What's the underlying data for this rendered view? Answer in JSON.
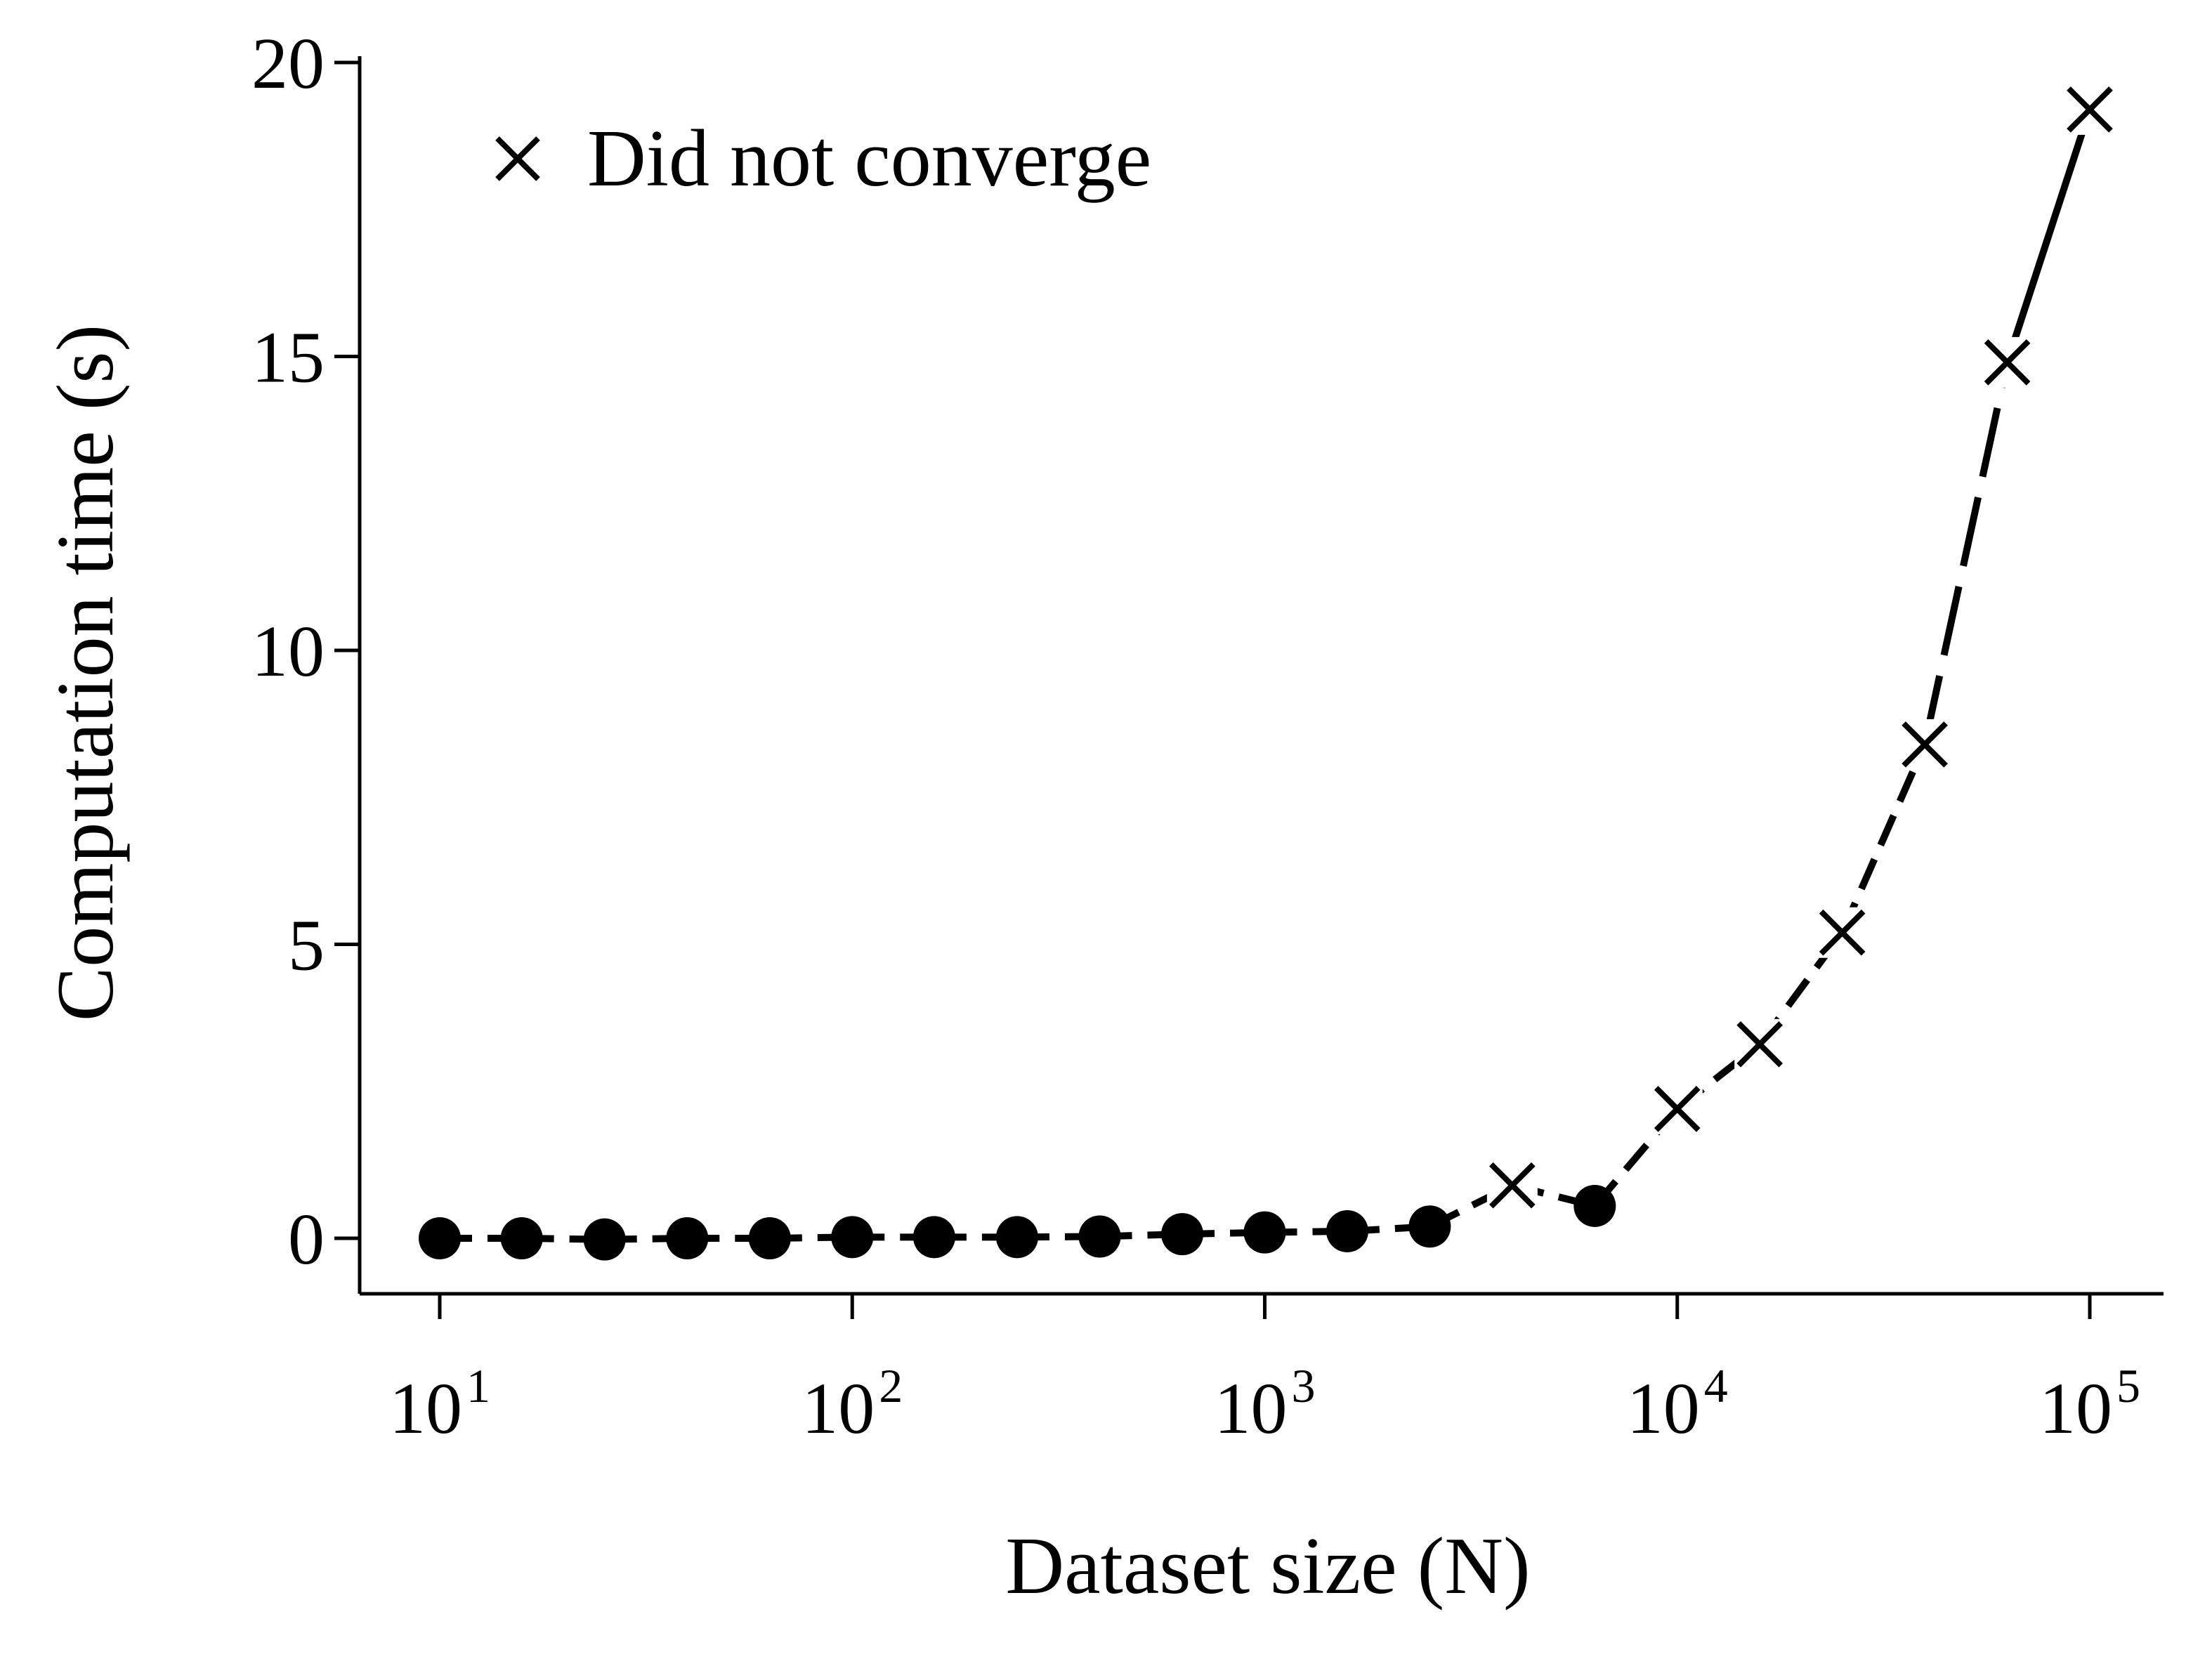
{
  "chart_data": {
    "type": "line",
    "xlabel": "Dataset size (N)",
    "ylabel": "Computation time (s)",
    "x_scale": "log",
    "xlim": [
      7,
      120000
    ],
    "ylim": [
      -1,
      20
    ],
    "x_ticks": [
      {
        "value": 10,
        "base": "10",
        "exp": "1"
      },
      {
        "value": 100,
        "base": "10",
        "exp": "2"
      },
      {
        "value": 1000,
        "base": "10",
        "exp": "3"
      },
      {
        "value": 10000,
        "base": "10",
        "exp": "4"
      },
      {
        "value": 100000,
        "base": "10",
        "exp": "5"
      }
    ],
    "y_ticks": [
      0,
      5,
      10,
      15,
      20
    ],
    "legend": {
      "label": "Did not converge",
      "marker": "x",
      "position": "top-left"
    },
    "grid": false,
    "colors": {
      "line": "#000000",
      "marker": "#000000"
    },
    "series": [
      {
        "line_style": "dashed",
        "points": [
          {
            "x": 10,
            "y": 0.0,
            "converged": true
          },
          {
            "x": 15.8,
            "y": 0.0,
            "converged": true
          },
          {
            "x": 25.1,
            "y": -0.02,
            "converged": true
          },
          {
            "x": 39.8,
            "y": 0.0,
            "converged": true
          },
          {
            "x": 63.1,
            "y": 0.0,
            "converged": true
          },
          {
            "x": 100,
            "y": 0.02,
            "converged": true
          },
          {
            "x": 158,
            "y": 0.02,
            "converged": true
          },
          {
            "x": 251,
            "y": 0.02,
            "converged": true
          },
          {
            "x": 398,
            "y": 0.03,
            "converged": true
          },
          {
            "x": 631,
            "y": 0.07,
            "converged": true
          },
          {
            "x": 1000,
            "y": 0.1,
            "converged": true
          },
          {
            "x": 1585,
            "y": 0.12,
            "converged": true
          },
          {
            "x": 2512,
            "y": 0.2,
            "converged": true
          },
          {
            "x": 3981,
            "y": 0.9,
            "converged": false
          },
          {
            "x": 6310,
            "y": 0.55,
            "converged": true
          },
          {
            "x": 10000,
            "y": 2.2,
            "converged": false
          },
          {
            "x": 15849,
            "y": 3.3,
            "converged": false
          },
          {
            "x": 25119,
            "y": 5.2,
            "converged": false
          },
          {
            "x": 39811,
            "y": 8.4,
            "converged": false
          },
          {
            "x": 63096,
            "y": 14.9,
            "converged": false
          },
          {
            "x": 100000,
            "y": 19.2,
            "converged": false
          }
        ]
      }
    ]
  }
}
